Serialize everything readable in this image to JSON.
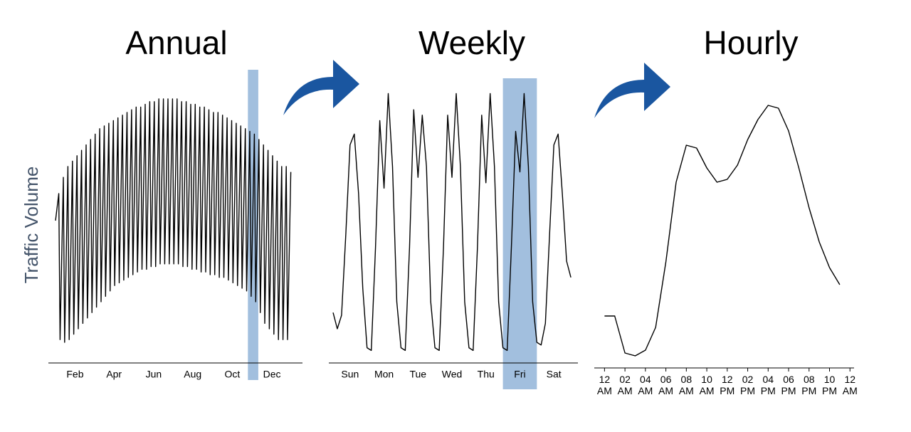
{
  "chart_data": [
    {
      "type": "line",
      "title": "Annual",
      "ylabel": "Traffic Volume",
      "color": "#000000",
      "x": [
        0,
        5,
        7,
        12,
        14,
        19,
        21,
        26,
        28,
        33,
        35,
        40,
        42,
        47,
        49,
        54,
        56,
        61,
        63,
        68,
        70,
        75,
        77,
        82,
        84,
        89,
        91,
        96,
        98,
        103,
        105,
        110,
        112,
        117,
        119,
        124,
        126,
        131,
        133,
        138,
        140,
        145,
        147,
        152,
        154,
        159,
        161,
        166,
        168,
        173,
        175,
        180,
        182,
        187,
        189,
        194,
        196,
        201,
        203,
        208,
        210,
        215,
        217,
        222,
        224,
        229,
        231,
        236,
        238,
        243,
        245,
        250,
        252,
        257,
        259,
        264,
        266,
        271,
        273,
        278,
        280,
        285,
        287,
        292,
        294,
        299,
        301,
        306,
        308,
        313,
        315,
        320,
        322,
        327,
        329,
        334,
        336,
        341,
        343,
        348,
        350,
        355,
        357,
        362
      ],
      "values": [
        50,
        60,
        6,
        66,
        5,
        70,
        6,
        72,
        8,
        74,
        10,
        76,
        12,
        78,
        14,
        80,
        16,
        82,
        18,
        84,
        20,
        85,
        22,
        86,
        24,
        87,
        26,
        88,
        27,
        89,
        28,
        90,
        29,
        91,
        30,
        92,
        31,
        92,
        32,
        93,
        32,
        94,
        33,
        94,
        33,
        95,
        34,
        95,
        34,
        95,
        34,
        95,
        34,
        95,
        34,
        94,
        33,
        94,
        33,
        93,
        32,
        93,
        32,
        92,
        31,
        92,
        31,
        91,
        30,
        90,
        30,
        90,
        29,
        89,
        29,
        88,
        28,
        87,
        27,
        86,
        26,
        85,
        25,
        84,
        24,
        83,
        22,
        82,
        20,
        80,
        16,
        78,
        12,
        76,
        10,
        74,
        8,
        72,
        6,
        70,
        6,
        70,
        6,
        68
      ],
      "xlim": [
        -11,
        380
      ],
      "xticks": [
        {
          "value": 30,
          "label": "Feb"
        },
        {
          "value": 90,
          "label": "Apr"
        },
        {
          "value": 151,
          "label": "Jun"
        },
        {
          "value": 211,
          "label": "Aug"
        },
        {
          "value": 272,
          "label": "Oct"
        },
        {
          "value": 333,
          "label": "Dec"
        }
      ],
      "ylim": [
        0,
        100
      ],
      "highlight": [
        296,
        312
      ],
      "highlight_color": "#9dbcdc"
    },
    {
      "type": "line",
      "title": "Weekly",
      "color": "#000000",
      "x": [
        0,
        3,
        6,
        9,
        12,
        15,
        18,
        21,
        24,
        27,
        30,
        33,
        36,
        39,
        42,
        45,
        48,
        51,
        54,
        57,
        60,
        63,
        66,
        69,
        72,
        75,
        78,
        81,
        84,
        87,
        90,
        93,
        96,
        99,
        102,
        105,
        108,
        111,
        114,
        117,
        120,
        123,
        126,
        129,
        132,
        135,
        138,
        141,
        144,
        147,
        150,
        153,
        156,
        159,
        162,
        165,
        168
      ],
      "values": [
        16,
        10,
        15,
        45,
        78,
        82,
        60,
        25,
        3,
        2,
        40,
        87,
        62,
        97,
        70,
        20,
        3,
        2,
        40,
        91,
        66,
        89,
        70,
        20,
        3,
        2,
        40,
        89,
        66,
        97,
        70,
        20,
        3,
        2,
        40,
        89,
        64,
        97,
        70,
        20,
        3,
        2,
        40,
        83,
        68,
        97,
        70,
        20,
        5,
        4,
        12,
        45,
        78,
        82,
        60,
        35,
        29
      ],
      "xlim": [
        -3,
        173
      ],
      "xticks": [
        {
          "value": 12,
          "label": "Sun"
        },
        {
          "value": 36,
          "label": "Mon"
        },
        {
          "value": 60,
          "label": "Tue"
        },
        {
          "value": 84,
          "label": "Wed"
        },
        {
          "value": 108,
          "label": "Thu"
        },
        {
          "value": 132,
          "label": "Fri"
        },
        {
          "value": 156,
          "label": "Sat"
        }
      ],
      "ylim": [
        0,
        100
      ],
      "highlight": [
        120,
        144
      ],
      "highlight_color": "#9dbcdc"
    },
    {
      "type": "line",
      "title": "Hourly",
      "color": "#000000",
      "x": [
        0,
        1,
        2,
        3,
        4,
        5,
        6,
        7,
        8,
        9,
        10,
        11,
        12,
        13,
        14,
        15,
        16,
        17,
        18,
        19,
        20,
        21,
        22,
        23
      ],
      "values": [
        19,
        19,
        6,
        5,
        7,
        15,
        38,
        66,
        79,
        78,
        71,
        66,
        67,
        72,
        81,
        88,
        93,
        92,
        84,
        71,
        57,
        45,
        36,
        30
      ],
      "xlim": [
        -1,
        24.4
      ],
      "xticks": [
        {
          "value": 0,
          "label": "12 AM"
        },
        {
          "value": 2,
          "label": "02 AM"
        },
        {
          "value": 4,
          "label": "04 AM"
        },
        {
          "value": 6,
          "label": "06 AM"
        },
        {
          "value": 8,
          "label": "08 AM"
        },
        {
          "value": 10,
          "label": "10 AM"
        },
        {
          "value": 12,
          "label": "12 PM"
        },
        {
          "value": 14,
          "label": "02 PM"
        },
        {
          "value": 16,
          "label": "04 PM"
        },
        {
          "value": 18,
          "label": "06 PM"
        },
        {
          "value": 20,
          "label": "08 PM"
        },
        {
          "value": 22,
          "label": "10 PM"
        },
        {
          "value": 24,
          "label": "12 AM"
        }
      ],
      "ylim": [
        0,
        100
      ]
    }
  ]
}
